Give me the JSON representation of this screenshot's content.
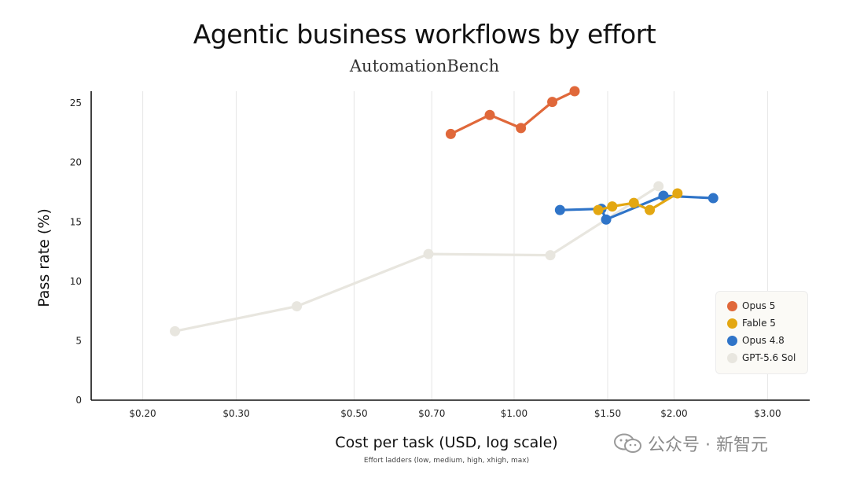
{
  "chart_data": {
    "type": "line",
    "title": "Agentic business workflows by effort",
    "subtitle": "AutomationBench",
    "xlabel": "Cost per task (USD, log scale)",
    "xlabel_note": "Effort ladders (low, medium, high, xhigh, max)",
    "ylabel": "Pass rate (%)",
    "xscale": "log",
    "xlim": [
      0.16,
      3.6
    ],
    "ylim": [
      0,
      26
    ],
    "xticks": [
      0.2,
      0.3,
      0.5,
      0.7,
      1.0,
      1.5,
      2.0,
      3.0
    ],
    "xtick_labels": [
      "$0.20",
      "$0.30",
      "$0.50",
      "$0.70",
      "$1.00",
      "$1.50",
      "$2.00",
      "$3.00"
    ],
    "yticks": [
      0,
      5,
      10,
      15,
      20,
      25
    ],
    "ytick_labels": [
      "0",
      "5",
      "10",
      "15",
      "20",
      "25"
    ],
    "grid": "vertical",
    "legend_position": "bottom-right",
    "series": [
      {
        "name": "GPT-5.6 Sol",
        "color": "#e8e6df",
        "x": [
          0.23,
          0.39,
          0.69,
          1.17,
          1.87
        ],
        "y": [
          5.8,
          7.9,
          12.3,
          12.2,
          18.0
        ]
      },
      {
        "name": "Opus 5",
        "color": "#e0683a",
        "x": [
          0.76,
          0.9,
          1.03,
          1.18,
          1.3
        ],
        "y": [
          22.4,
          24.0,
          22.9,
          25.1,
          26.0
        ]
      },
      {
        "name": "Opus 4.8",
        "color": "#2f74c8",
        "x": [
          1.22,
          1.46,
          1.49,
          1.91,
          2.37
        ],
        "y": [
          16.0,
          16.1,
          15.2,
          17.2,
          17.0
        ]
      },
      {
        "name": "Fable 5",
        "color": "#e3a712",
        "x": [
          1.44,
          1.53,
          1.68,
          1.8,
          2.03
        ],
        "y": [
          16.0,
          16.3,
          16.6,
          16.0,
          17.4
        ]
      }
    ]
  },
  "legend": {
    "items": [
      {
        "label": "Opus 5",
        "color": "#e0683a"
      },
      {
        "label": "Fable 5",
        "color": "#e3a712"
      },
      {
        "label": "Opus 4.8",
        "color": "#2f74c8"
      },
      {
        "label": "GPT-5.6 Sol",
        "color": "#e8e6df"
      }
    ]
  },
  "watermark": {
    "text": "公众号 · 新智元",
    "icon": "wechat-icon"
  }
}
